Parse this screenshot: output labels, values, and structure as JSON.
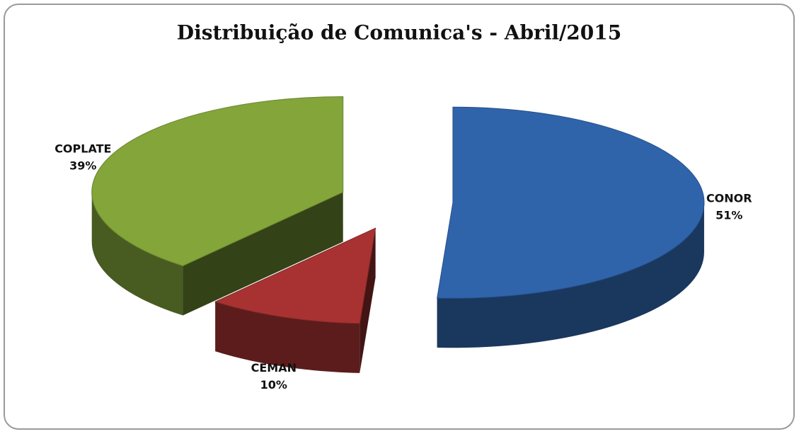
{
  "chart_data": {
    "type": "pie",
    "title": "Distribuição de Comunica's - Abril/2015",
    "categories": [
      "CONOR",
      "CEMAN",
      "COPLATE"
    ],
    "values": [
      51,
      10,
      39
    ],
    "value_labels": [
      "51%",
      "10%",
      "39%"
    ],
    "colors": [
      "#2f64ab",
      "#a83232",
      "#83a53a"
    ]
  }
}
